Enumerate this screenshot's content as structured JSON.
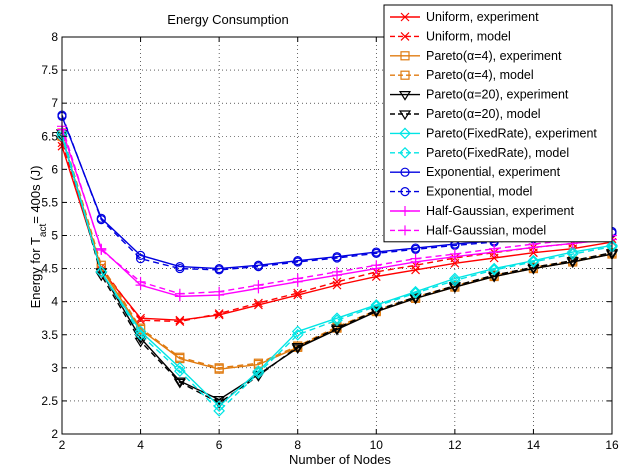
{
  "chart_data": {
    "type": "line",
    "title": "Energy Consumption",
    "xlabel": "Number of Nodes",
    "ylabel": {
      "main": "Energy for T",
      "sub": "act",
      "rest": "= 400s (J)"
    },
    "xlim": [
      2,
      16
    ],
    "ylim": [
      2,
      8
    ],
    "xticks": [
      2,
      4,
      6,
      8,
      10,
      12,
      14,
      16
    ],
    "yticks": [
      2,
      2.5,
      3,
      3.5,
      4,
      4.5,
      5,
      5.5,
      6,
      6.5,
      7,
      7.5,
      8
    ],
    "grid": true,
    "legend_position": "top-right",
    "x": [
      2,
      3,
      4,
      5,
      6,
      7,
      8,
      9,
      10,
      11,
      12,
      13,
      14,
      15,
      16
    ],
    "series": [
      {
        "name": "Uniform, experiment",
        "color": "#ff0000",
        "dash": "solid",
        "marker": "x",
        "values": [
          6.35,
          4.48,
          3.75,
          3.72,
          3.8,
          3.95,
          4.1,
          4.25,
          4.38,
          4.48,
          4.58,
          4.66,
          4.74,
          4.8,
          4.9
        ]
      },
      {
        "name": "Uniform, model",
        "color": "#ff0000",
        "dash": "dashed",
        "marker": "x",
        "values": [
          6.4,
          4.52,
          3.72,
          3.7,
          3.82,
          3.98,
          4.13,
          4.3,
          4.45,
          4.55,
          4.66,
          4.74,
          4.82,
          4.88,
          4.95
        ]
      },
      {
        "name": "Pareto(α=4), experiment",
        "color": "#e07b10",
        "dash": "solid",
        "marker": "square",
        "values": [
          6.5,
          4.5,
          3.58,
          3.14,
          2.98,
          3.05,
          3.31,
          3.6,
          3.85,
          4.05,
          4.22,
          4.38,
          4.5,
          4.6,
          4.72
        ]
      },
      {
        "name": "Pareto(α=4), model",
        "color": "#e07b10",
        "dash": "dashed",
        "marker": "square",
        "values": [
          6.55,
          4.55,
          3.6,
          3.16,
          3.0,
          3.07,
          3.33,
          3.62,
          3.87,
          4.07,
          4.24,
          4.4,
          4.52,
          4.62,
          4.74
        ]
      },
      {
        "name": "Pareto(α=20), experiment",
        "color": "#000000",
        "dash": "solid",
        "marker": "tri-down",
        "values": [
          6.5,
          4.45,
          3.45,
          2.8,
          2.52,
          2.9,
          3.3,
          3.58,
          3.85,
          4.05,
          4.22,
          4.38,
          4.5,
          4.6,
          4.72
        ]
      },
      {
        "name": "Pareto(α=20), model",
        "color": "#000000",
        "dash": "dashed",
        "marker": "tri-down",
        "values": [
          6.55,
          4.4,
          3.4,
          2.78,
          2.47,
          2.88,
          3.32,
          3.6,
          3.87,
          4.07,
          4.24,
          4.4,
          4.52,
          4.62,
          4.74
        ]
      },
      {
        "name": "Pareto(FixedRate), experiment",
        "color": "#00e5e5",
        "dash": "solid",
        "marker": "diamond",
        "values": [
          6.5,
          4.45,
          3.55,
          3.0,
          2.42,
          2.95,
          3.55,
          3.75,
          3.95,
          4.15,
          4.35,
          4.5,
          4.62,
          4.75,
          4.85
        ]
      },
      {
        "name": "Pareto(FixedRate), model",
        "color": "#00e5e5",
        "dash": "dashed",
        "marker": "diamond",
        "values": [
          6.55,
          4.45,
          3.5,
          2.95,
          2.35,
          2.92,
          3.5,
          3.72,
          3.93,
          4.13,
          4.32,
          4.48,
          4.6,
          4.72,
          4.83
        ]
      },
      {
        "name": "Exponential, experiment",
        "color": "#0000e0",
        "dash": "solid",
        "marker": "circle",
        "values": [
          6.8,
          5.26,
          4.7,
          4.53,
          4.5,
          4.55,
          4.62,
          4.68,
          4.75,
          4.81,
          4.87,
          4.92,
          4.97,
          5.02,
          5.06
        ]
      },
      {
        "name": "Exponential, model",
        "color": "#0000e0",
        "dash": "dashed",
        "marker": "circle",
        "values": [
          6.82,
          5.24,
          4.65,
          4.5,
          4.48,
          4.53,
          4.6,
          4.66,
          4.73,
          4.79,
          4.85,
          4.9,
          4.95,
          5.0,
          5.04
        ]
      },
      {
        "name": "Half-Gaussian, experiment",
        "color": "#ff00ff",
        "dash": "solid",
        "marker": "plus",
        "values": [
          6.6,
          4.8,
          4.25,
          4.08,
          4.1,
          4.2,
          4.3,
          4.4,
          4.5,
          4.6,
          4.68,
          4.75,
          4.82,
          4.88,
          4.94
        ]
      },
      {
        "name": "Half-Gaussian, model",
        "color": "#ff00ff",
        "dash": "dashed",
        "marker": "plus",
        "values": [
          6.65,
          4.78,
          4.3,
          4.12,
          4.15,
          4.25,
          4.35,
          4.45,
          4.55,
          4.65,
          4.72,
          4.8,
          4.87,
          4.93,
          5.0
        ]
      }
    ]
  }
}
